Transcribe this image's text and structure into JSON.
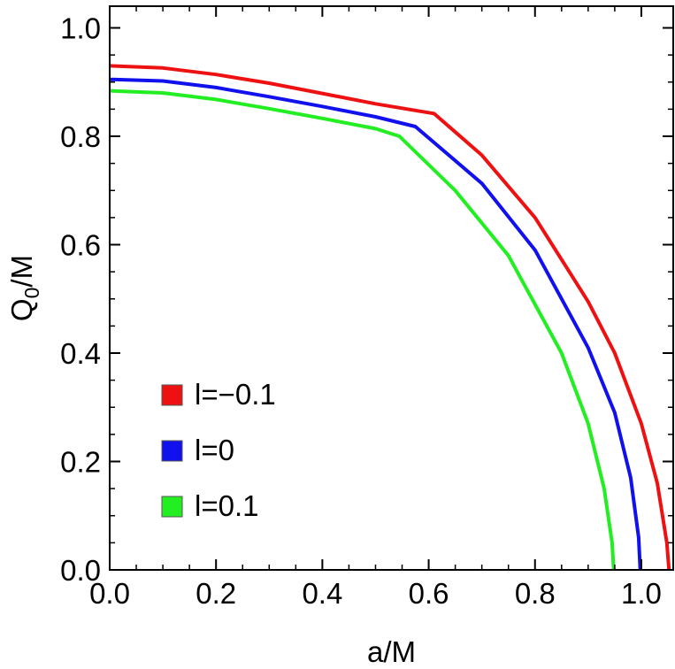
{
  "chart_data": {
    "type": "line",
    "xlabel": "a/M",
    "ylabel": {
      "main": "Q",
      "sub": "0",
      "rest": "/M"
    },
    "xlim": [
      0,
      1.06
    ],
    "ylim": [
      0,
      1.04
    ],
    "xticks": [
      0.0,
      0.2,
      0.4,
      0.6,
      0.8,
      1.0
    ],
    "xtick_labels": [
      "0.0",
      "0.2",
      "0.4",
      "0.6",
      "0.8",
      "1.0"
    ],
    "yticks": [
      0.0,
      0.2,
      0.4,
      0.6,
      0.8,
      1.0
    ],
    "ytick_labels": [
      "0.0",
      "0.2",
      "0.4",
      "0.6",
      "0.8",
      "1.0"
    ],
    "grid": false,
    "legend_position": "lower-left",
    "series": [
      {
        "name": "l=−0.1",
        "color": "#ee1111",
        "points": [
          [
            0.0,
            0.93
          ],
          [
            0.1,
            0.926
          ],
          [
            0.2,
            0.914
          ],
          [
            0.3,
            0.898
          ],
          [
            0.4,
            0.879
          ],
          [
            0.5,
            0.86
          ],
          [
            0.61,
            0.842
          ],
          [
            0.7,
            0.765
          ],
          [
            0.8,
            0.65
          ],
          [
            0.9,
            0.495
          ],
          [
            0.95,
            0.4
          ],
          [
            1.0,
            0.27
          ],
          [
            1.03,
            0.16
          ],
          [
            1.048,
            0.05
          ],
          [
            1.052,
            0.0
          ]
        ]
      },
      {
        "name": "l=0",
        "color": "#1111ee",
        "points": [
          [
            0.0,
            0.905
          ],
          [
            0.1,
            0.902
          ],
          [
            0.2,
            0.89
          ],
          [
            0.3,
            0.873
          ],
          [
            0.4,
            0.855
          ],
          [
            0.5,
            0.836
          ],
          [
            0.575,
            0.818
          ],
          [
            0.7,
            0.713
          ],
          [
            0.8,
            0.59
          ],
          [
            0.9,
            0.41
          ],
          [
            0.95,
            0.29
          ],
          [
            0.98,
            0.17
          ],
          [
            0.995,
            0.06
          ],
          [
            0.998,
            0.0
          ]
        ]
      },
      {
        "name": "l=0.1",
        "color": "#22ee22",
        "points": [
          [
            0.0,
            0.884
          ],
          [
            0.1,
            0.88
          ],
          [
            0.2,
            0.868
          ],
          [
            0.3,
            0.851
          ],
          [
            0.4,
            0.833
          ],
          [
            0.5,
            0.814
          ],
          [
            0.545,
            0.8
          ],
          [
            0.65,
            0.7
          ],
          [
            0.75,
            0.58
          ],
          [
            0.85,
            0.4
          ],
          [
            0.9,
            0.27
          ],
          [
            0.93,
            0.15
          ],
          [
            0.945,
            0.05
          ],
          [
            0.948,
            0.0
          ]
        ]
      }
    ]
  }
}
